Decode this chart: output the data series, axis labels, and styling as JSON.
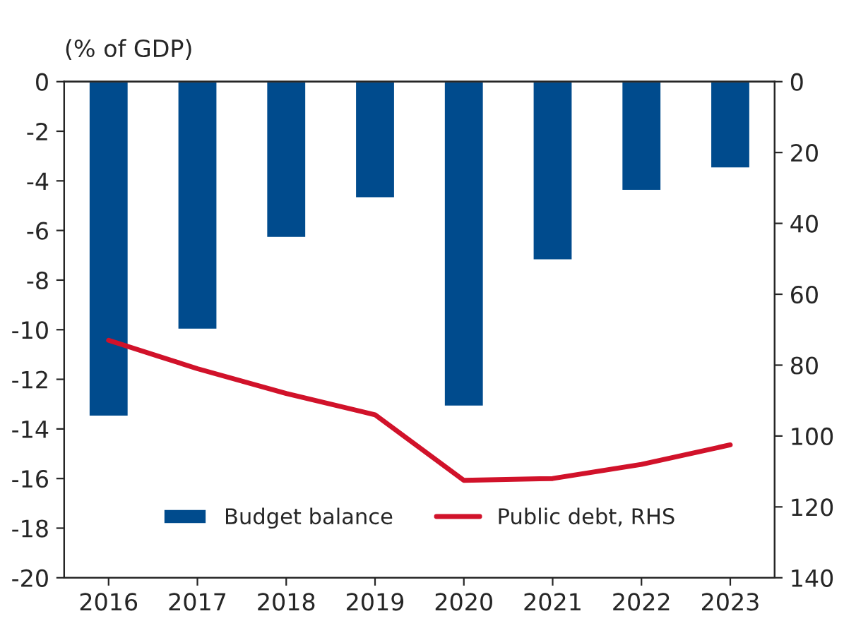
{
  "chart_data": {
    "type": "bar",
    "ylabel": "(% of GDP)",
    "categories": [
      "2016",
      "2017",
      "2018",
      "2019",
      "2020",
      "2021",
      "2022",
      "2023"
    ],
    "series": [
      {
        "name": "Budget balance",
        "color": "#004b8d",
        "values": [
          -13.5,
          -10.0,
          -6.3,
          -4.7,
          -13.1,
          -7.2,
          -4.4,
          -3.5
        ]
      },
      {
        "name": "Public debt, RHS",
        "type": "line",
        "axis": "y2",
        "color": "#d1122a",
        "values": [
          73,
          81,
          88,
          94,
          112.5,
          112,
          108,
          102.5
        ]
      }
    ],
    "ylim": [
      -20,
      0
    ],
    "yticks": [
      -20,
      -18,
      -16,
      -14,
      -12,
      -10,
      -8,
      -6,
      -4,
      -2,
      0
    ],
    "y2lim": [
      140,
      0
    ],
    "y2ticks": [
      0,
      20,
      40,
      60,
      80,
      100,
      120,
      140
    ],
    "grid": false,
    "legend": "bottom",
    "marker": "none",
    "line_style": "solid"
  }
}
